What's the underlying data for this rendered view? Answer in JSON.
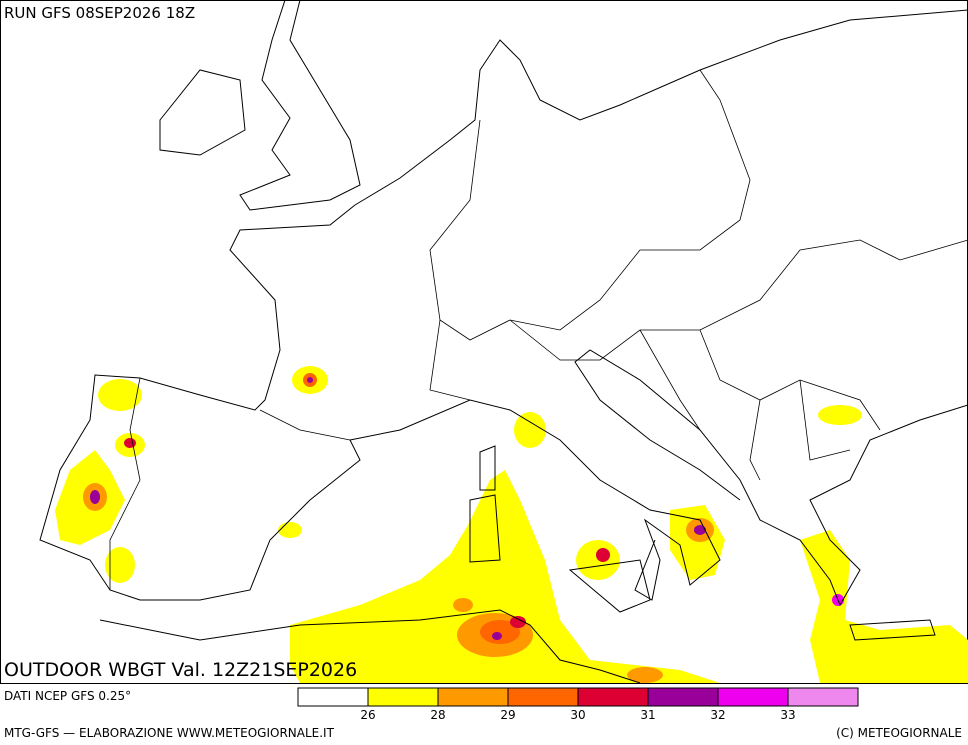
{
  "header": {
    "run": "RUN GFS 08SEP2026 18Z"
  },
  "map": {
    "title": "OUTDOOR WBGT Val. 12Z21SEP2026"
  },
  "legend": {
    "source": "DATI NCEP GFS 0.25°",
    "colors": [
      "#ffffff",
      "#ffff00",
      "#ff9900",
      "#ff6600",
      "#dd0033",
      "#990099",
      "#ee00ee",
      "#ee88ee"
    ],
    "ticks": [
      26,
      28,
      29,
      30,
      31,
      32,
      33
    ]
  },
  "footer": {
    "credit": "MTG-GFS — ELABORAZIONE WWW.METEOGIORNALE.IT",
    "copyright": "(C) METEOGIORNALE"
  }
}
